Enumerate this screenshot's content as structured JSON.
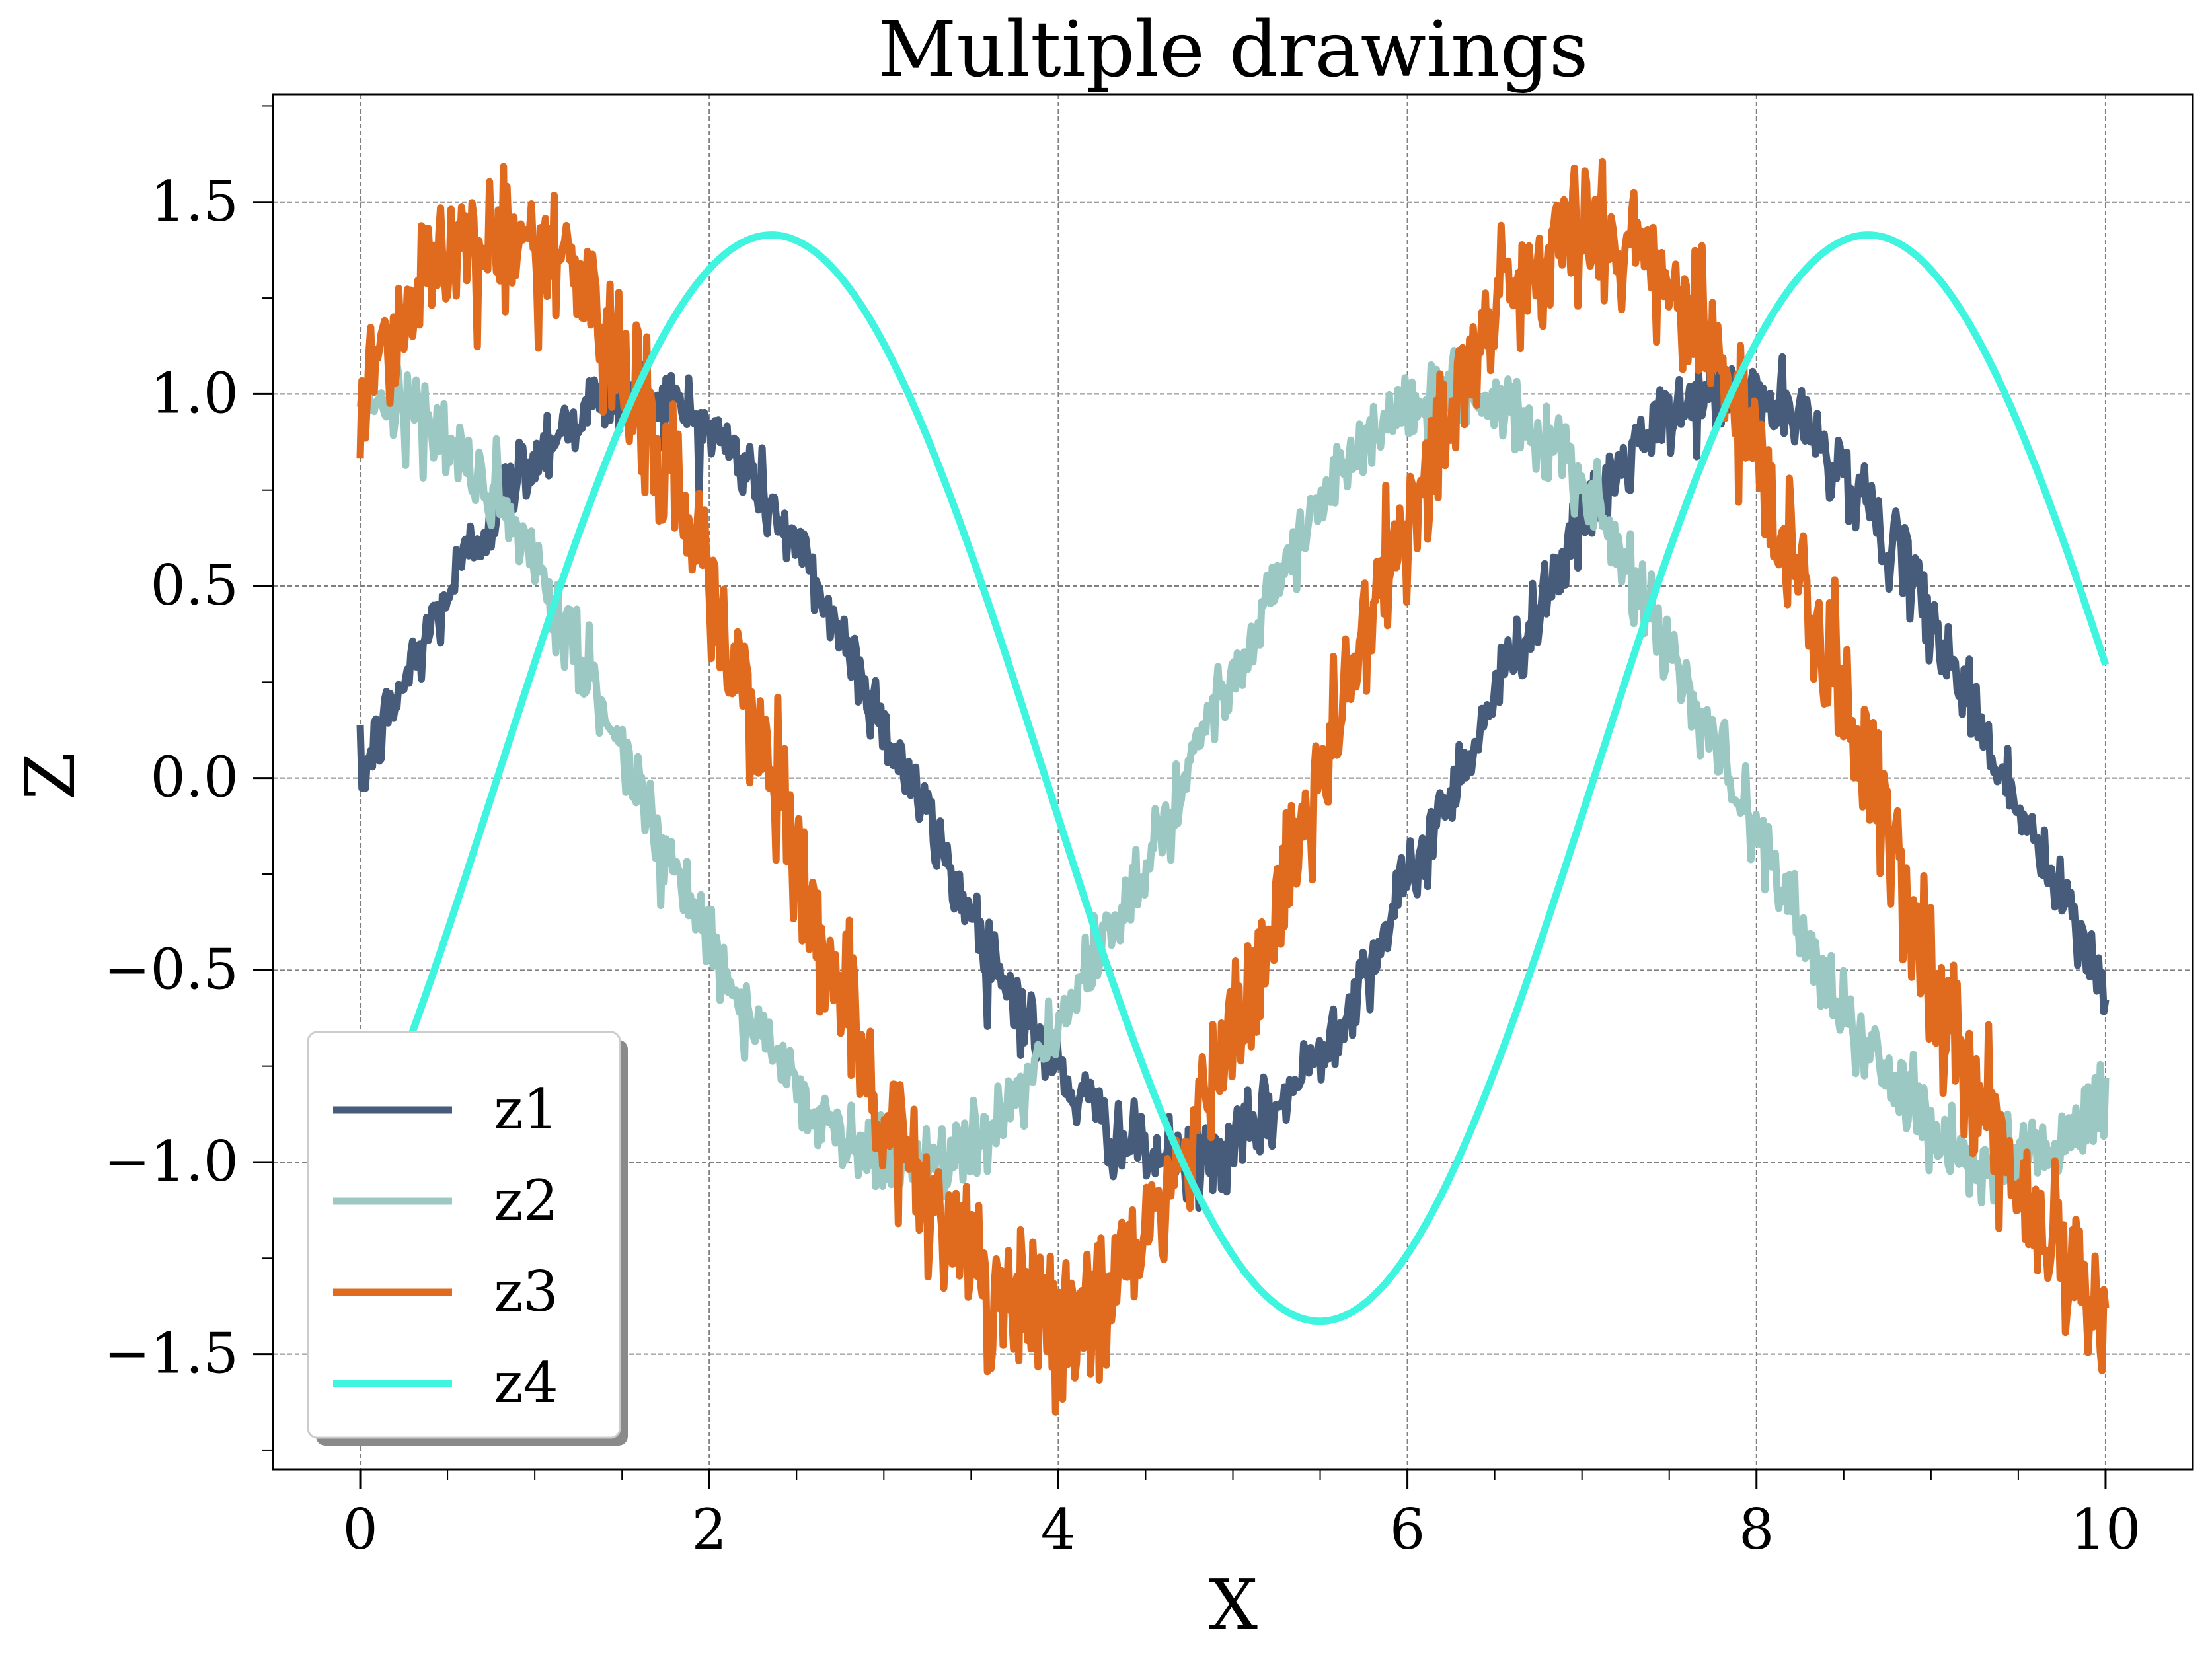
{
  "chart_data": {
    "type": "line",
    "title": "Multiple drawings",
    "xlabel": "X",
    "ylabel": "Z",
    "xlim": [
      -0.5,
      10.5
    ],
    "ylim": [
      -1.8,
      1.78
    ],
    "xticks": [
      0,
      2,
      4,
      6,
      8,
      10
    ],
    "xtick_labels": [
      "0",
      "2",
      "4",
      "6",
      "8",
      "10"
    ],
    "yticks": [
      -1.5,
      -1.0,
      -0.5,
      0.0,
      0.5,
      1.0,
      1.5
    ],
    "ytick_labels": [
      "−1.5",
      "−1.0",
      "−0.5",
      "0.0",
      "0.5",
      "1.0",
      "1.5"
    ],
    "grid": true,
    "legend_position": "lower-left",
    "x_range": [
      0,
      10
    ],
    "series": [
      {
        "name": "z1",
        "color": "#475c7a",
        "noise": 0.05,
        "function": "sin(x)",
        "x": [
          0,
          1.57,
          3.14,
          4.71,
          6.28,
          7.85,
          10
        ],
        "values": [
          0.0,
          1.0,
          0.0,
          -1.0,
          0.0,
          1.0,
          -0.54
        ]
      },
      {
        "name": "z2",
        "color": "#9bc8c2",
        "noise": 0.05,
        "function": "cos(x)",
        "x": [
          0,
          1.57,
          3.14,
          4.71,
          6.28,
          7.85,
          10
        ],
        "values": [
          1.0,
          0.0,
          -1.0,
          0.0,
          1.0,
          0.0,
          -0.84
        ]
      },
      {
        "name": "z3",
        "color": "#e06b1e",
        "noise": 0.1,
        "function": "sin(x)+cos(x)",
        "x": [
          0,
          0.79,
          2.36,
          3.93,
          5.5,
          7.07,
          8.64,
          10
        ],
        "values": [
          1.0,
          1.41,
          0.0,
          -1.41,
          0.0,
          1.41,
          0.0,
          -1.38
        ]
      },
      {
        "name": "z4",
        "color": "#40f5e0",
        "noise": 0.0,
        "function": "sin(x)-cos(x)",
        "x": [
          0,
          0.79,
          2.36,
          3.93,
          5.5,
          7.07,
          8.64,
          10
        ],
        "values": [
          -1.0,
          0.0,
          1.41,
          0.0,
          -1.41,
          0.0,
          1.41,
          0.3
        ]
      }
    ]
  }
}
